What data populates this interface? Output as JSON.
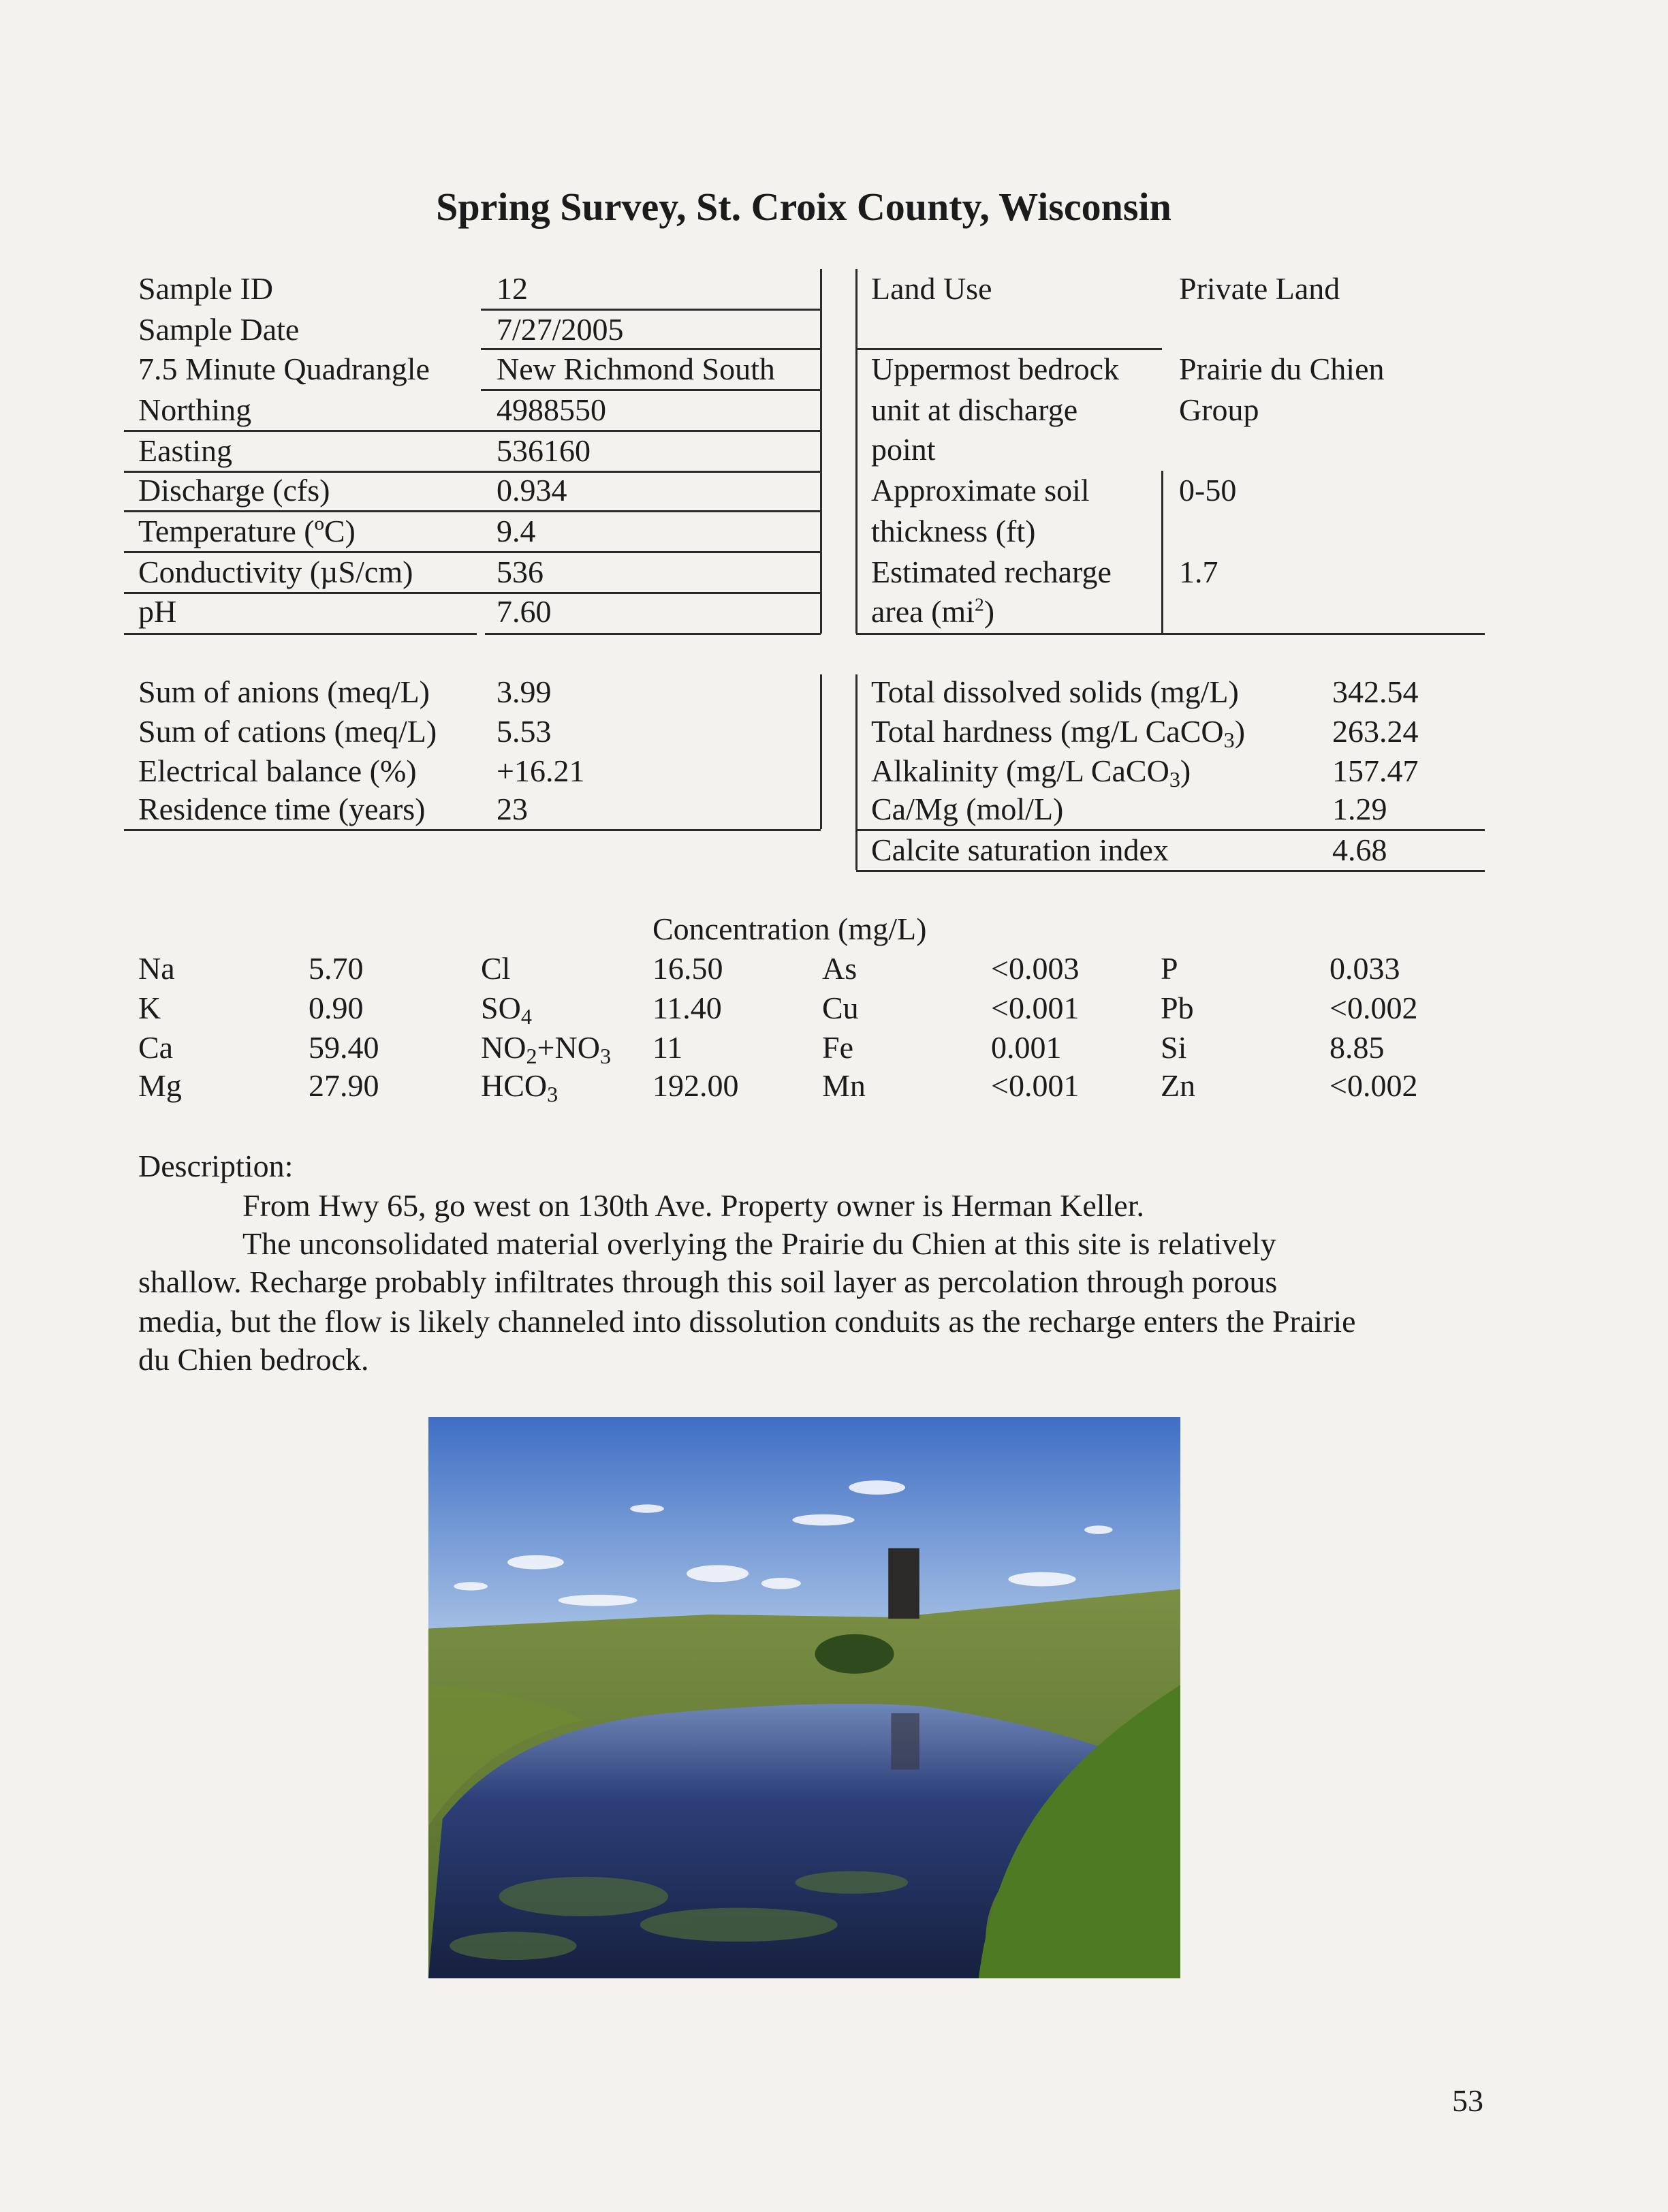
{
  "title": "Spring Survey, St. Croix County, Wisconsin",
  "site_info": [
    {
      "label": "Sample ID",
      "value": "12"
    },
    {
      "label": "Sample Date",
      "value": "7/27/2005"
    },
    {
      "label": "7.5 Minute Quadrangle",
      "value": "New Richmond South"
    },
    {
      "label": "Northing",
      "value": "4988550"
    },
    {
      "label": "Easting",
      "value": "536160"
    },
    {
      "label": "Discharge (cfs)",
      "value": "0.934"
    },
    {
      "label": "Temperature (ºC)",
      "value": "9.4"
    },
    {
      "label": "Conductivity (µS/cm)",
      "value": "536"
    },
    {
      "label": "pH",
      "value": "7.60"
    }
  ],
  "geology": [
    {
      "label_lines": [
        "Land Use"
      ],
      "value_lines": [
        "Private Land"
      ]
    },
    {
      "label_lines": [
        "Uppermost bedrock",
        "unit at discharge",
        "point"
      ],
      "value_lines": [
        "Prairie du Chien",
        "Group"
      ]
    },
    {
      "label_lines": [
        "Approximate soil",
        "thickness (ft)"
      ],
      "value_lines": [
        "0-50"
      ]
    },
    {
      "label_lines": [
        "Estimated recharge",
        "area (mi"
      ],
      "label_sup": "2",
      "label_after": ")",
      "value_lines": [
        "1.7"
      ]
    }
  ],
  "balance": [
    {
      "label": "Sum of anions (meq/L)",
      "value": "3.99"
    },
    {
      "label": "Sum of cations (meq/L)",
      "value": "5.53"
    },
    {
      "label": "Electrical balance (%)",
      "value": "+16.21"
    },
    {
      "label": "Residence time (years)",
      "value": "23"
    }
  ],
  "summary": [
    {
      "label": "Total dissolved solids (mg/L)",
      "value": "342.54"
    },
    {
      "label": "Total hardness (mg/L CaCO",
      "sub": "3",
      "after": ")",
      "value": "263.24"
    },
    {
      "label": "Alkalinity (mg/L CaCO",
      "sub": "3",
      "after": ")",
      "value": "157.47"
    },
    {
      "label": "Ca/Mg (mol/L)",
      "value": "1.29"
    },
    {
      "label": "Calcite saturation index",
      "value": "4.68"
    }
  ],
  "concentration": {
    "header": "Concentration (mg/L)",
    "rows": [
      [
        {
          "el": "Na"
        },
        {
          "v": "5.70"
        },
        {
          "el": "Cl"
        },
        {
          "v": "16.50"
        },
        {
          "el": "As"
        },
        {
          "v": "<0.003"
        },
        {
          "el": "P"
        },
        {
          "v": "0.033"
        }
      ],
      [
        {
          "el": "SO",
          "sub": "4",
          "pre": "K"
        },
        {
          "v": "0.90"
        }
      ],
      [
        {
          "el": "Ca"
        },
        {
          "v": "59.40"
        }
      ],
      [
        {
          "el": "Mg"
        },
        {
          "v": "27.90"
        }
      ]
    ],
    "table": [
      [
        "Na",
        "5.70",
        "Cl",
        "16.50",
        "As",
        "<0.003",
        "P",
        "0.033"
      ],
      [
        "K",
        "0.90",
        "SO|4",
        "11.40",
        "Cu",
        "<0.001",
        "Pb",
        "<0.002"
      ],
      [
        "Ca",
        "59.40",
        "NO|2|+NO|3",
        "11",
        "Fe",
        "0.001",
        "Si",
        "8.85"
      ],
      [
        "Mg",
        "27.90",
        "HCO|3",
        "192.00",
        "Mn",
        "<0.001",
        "Zn",
        "<0.002"
      ]
    ]
  },
  "description": {
    "heading": "Description:",
    "lines": [
      "From Hwy 65, go west on 130th Ave.  Property owner is Herman Keller.",
      "The unconsolidated material overlying the Prairie du Chien at this site is relatively",
      "shallow.  Recharge probably infiltrates through this soil layer as percolation through porous",
      "media, but the flow is likely channeled into dissolution conduits as the recharge enters the Prairie",
      "du Chien bedrock."
    ]
  },
  "page_number": "53"
}
